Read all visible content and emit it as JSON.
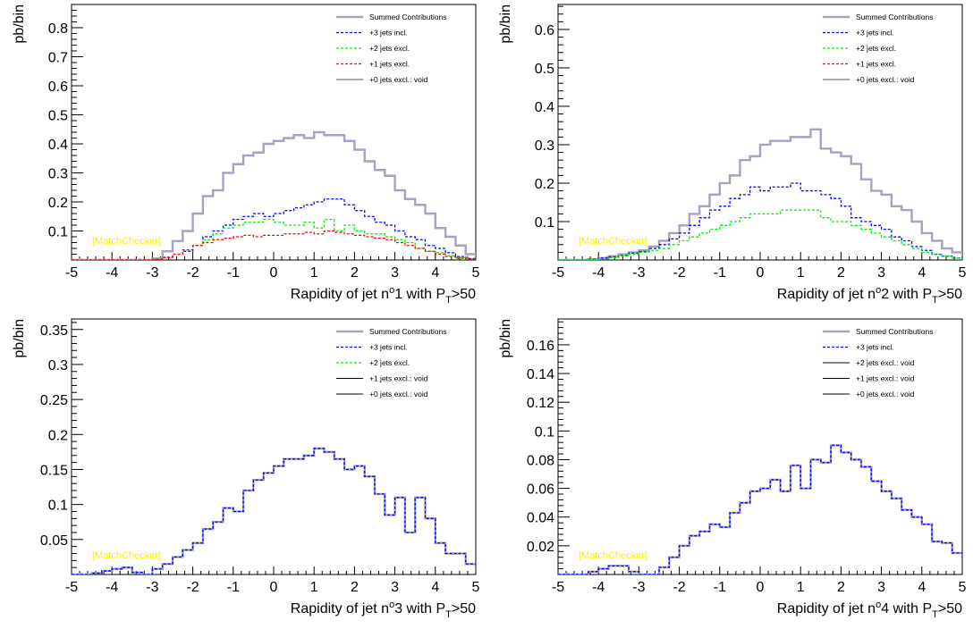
{
  "chart_data": [
    {
      "type": "line",
      "xlabel_parts": [
        "Rapidity of jet n",
        "o",
        "1 with P",
        "T",
        ">50"
      ],
      "ylabel": "pb/bin",
      "xlim": [
        -5,
        5
      ],
      "ylim": [
        0,
        0.88
      ],
      "xticks": [
        "-5",
        "-4",
        "-3",
        "-2",
        "-1",
        "0",
        "1",
        "2",
        "3",
        "4",
        "5"
      ],
      "yticks": [
        {
          "v": 0.1,
          "label": "0.1"
        },
        {
          "v": 0.2,
          "label": "0.2"
        },
        {
          "v": 0.3,
          "label": "0.3"
        },
        {
          "v": 0.4,
          "label": "0.4"
        },
        {
          "v": 0.5,
          "label": "0.5"
        },
        {
          "v": 0.6,
          "label": "0.6"
        },
        {
          "v": 0.7,
          "label": "0.7"
        },
        {
          "v": 0.8,
          "label": "0.8"
        }
      ],
      "watermark": "[MatchChecker]",
      "legend_position": "top-right",
      "legend": [
        {
          "label": "Summed Contributions",
          "color": "#a3a3c2",
          "style": "solid-thick"
        },
        {
          "label": "+3 jets incl.",
          "color": "#0000ff",
          "style": "dashed"
        },
        {
          "label": "+2 jets excl.",
          "color": "#00ee00",
          "style": "dashed"
        },
        {
          "label": "+1 jets excl.",
          "color": "#ff0000",
          "style": "dashed"
        },
        {
          "label": "+0 jets  excl.: void",
          "color": "#555555",
          "style": "solid"
        }
      ],
      "bin_start": -5,
      "bin_width": 0.25,
      "series": [
        {
          "name": "Summed Contributions",
          "color": "#a3a3c2",
          "width": 2.4,
          "dash": "",
          "values": [
            0,
            0,
            0,
            0,
            0,
            0,
            0,
            0,
            0.005,
            0.03,
            0.065,
            0.1,
            0.16,
            0.22,
            0.24,
            0.3,
            0.33,
            0.36,
            0.37,
            0.4,
            0.41,
            0.42,
            0.43,
            0.42,
            0.44,
            0.43,
            0.43,
            0.41,
            0.38,
            0.34,
            0.31,
            0.29,
            0.24,
            0.21,
            0.19,
            0.16,
            0.11,
            0.08,
            0.05,
            0.02,
            0.01,
            0.003,
            0,
            0,
            0,
            0,
            0,
            0,
            0,
            0
          ]
        },
        {
          "name": "+3 jets incl.",
          "color": "#0000ff",
          "width": 1.3,
          "dash": "3,2",
          "values": [
            0,
            0,
            0,
            0,
            0,
            0,
            0,
            0,
            0.003,
            0.01,
            0.02,
            0.03,
            0.05,
            0.08,
            0.1,
            0.12,
            0.14,
            0.15,
            0.16,
            0.15,
            0.16,
            0.17,
            0.18,
            0.19,
            0.2,
            0.21,
            0.21,
            0.19,
            0.17,
            0.15,
            0.13,
            0.12,
            0.1,
            0.08,
            0.07,
            0.05,
            0.04,
            0.025,
            0.012,
            0.005,
            0.002,
            0,
            0,
            0,
            0,
            0,
            0,
            0,
            0,
            0
          ]
        },
        {
          "name": "+2 jets excl.",
          "color": "#00ee00",
          "width": 1.3,
          "dash": "3,2",
          "values": [
            0,
            0,
            0,
            0,
            0,
            0,
            0,
            0,
            0.003,
            0.01,
            0.02,
            0.035,
            0.05,
            0.07,
            0.09,
            0.11,
            0.12,
            0.13,
            0.13,
            0.14,
            0.13,
            0.12,
            0.12,
            0.13,
            0.11,
            0.14,
            0.1,
            0.12,
            0.1,
            0.09,
            0.09,
            0.08,
            0.07,
            0.06,
            0.04,
            0.03,
            0.025,
            0.015,
            0.008,
            0.003,
            0,
            0,
            0,
            0,
            0,
            0,
            0,
            0,
            0,
            0
          ]
        },
        {
          "name": "+1 jets excl.",
          "color": "#ff0000",
          "width": 1.3,
          "dash": "3,2",
          "values": [
            0,
            0,
            0,
            0,
            0,
            0,
            0,
            0,
            0.002,
            0.008,
            0.02,
            0.035,
            0.05,
            0.06,
            0.07,
            0.075,
            0.08,
            0.085,
            0.08,
            0.085,
            0.085,
            0.09,
            0.09,
            0.095,
            0.09,
            0.1,
            0.095,
            0.09,
            0.085,
            0.08,
            0.075,
            0.07,
            0.06,
            0.05,
            0.04,
            0.03,
            0.02,
            0.012,
            0.006,
            0.002,
            0,
            0,
            0,
            0,
            0,
            0,
            0,
            0,
            0,
            0
          ]
        }
      ]
    },
    {
      "type": "line",
      "xlabel_parts": [
        "Rapidity of jet n",
        "o",
        "2 with P",
        "T",
        ">50"
      ],
      "ylabel": "pb/bin",
      "xlim": [
        -5,
        5
      ],
      "ylim": [
        0,
        0.665
      ],
      "xticks": [
        "-5",
        "-4",
        "-3",
        "-2",
        "-1",
        "0",
        "1",
        "2",
        "3",
        "4",
        "5"
      ],
      "yticks": [
        {
          "v": 0.1,
          "label": "0.1"
        },
        {
          "v": 0.2,
          "label": "0.2"
        },
        {
          "v": 0.3,
          "label": "0.3"
        },
        {
          "v": 0.4,
          "label": "0.4"
        },
        {
          "v": 0.5,
          "label": "0.5"
        },
        {
          "v": 0.6,
          "label": "0.6"
        }
      ],
      "watermark": "[MatchChecker]",
      "legend_position": "top-right",
      "legend": [
        {
          "label": "Summed Contributions",
          "color": "#a3a3c2",
          "style": "solid-thick"
        },
        {
          "label": "+3 jets incl.",
          "color": "#0000ff",
          "style": "dashed"
        },
        {
          "label": "+2 jets excl.",
          "color": "#00ee00",
          "style": "dashed"
        },
        {
          "label": "+1 jets excl.",
          "color": "#ff0000",
          "style": "dashed"
        },
        {
          "label": "+0 jets  excl.: void",
          "color": "#555555",
          "style": "solid"
        }
      ],
      "bin_start": -5,
      "bin_width": 0.25,
      "series": [
        {
          "name": "Summed Contributions",
          "color": "#a3a3c2",
          "width": 2.4,
          "dash": "",
          "values": [
            0,
            0,
            0,
            0.002,
            0.005,
            0.01,
            0.015,
            0.02,
            0.025,
            0.035,
            0.05,
            0.07,
            0.09,
            0.12,
            0.14,
            0.17,
            0.2,
            0.22,
            0.26,
            0.27,
            0.3,
            0.31,
            0.31,
            0.32,
            0.32,
            0.34,
            0.29,
            0.28,
            0.27,
            0.25,
            0.21,
            0.18,
            0.17,
            0.14,
            0.13,
            0.1,
            0.07,
            0.05,
            0.03,
            0.02,
            0.012,
            0.005,
            0.002,
            0,
            0,
            0,
            0,
            0,
            0,
            0
          ]
        },
        {
          "name": "+3 jets incl.",
          "color": "#0000ff",
          "width": 1.3,
          "dash": "3,2",
          "values": [
            0,
            0,
            0,
            0.002,
            0.005,
            0.008,
            0.012,
            0.018,
            0.022,
            0.03,
            0.04,
            0.055,
            0.07,
            0.09,
            0.11,
            0.13,
            0.14,
            0.16,
            0.17,
            0.19,
            0.18,
            0.19,
            0.19,
            0.2,
            0.18,
            0.18,
            0.17,
            0.16,
            0.14,
            0.11,
            0.1,
            0.09,
            0.08,
            0.06,
            0.05,
            0.035,
            0.025,
            0.015,
            0.01,
            0.005,
            0.002,
            0,
            0,
            0,
            0,
            0,
            0,
            0,
            0,
            0
          ]
        },
        {
          "name": "+2 jets excl.",
          "color": "#00ee00",
          "width": 1.3,
          "dash": "3,2",
          "values": [
            0,
            0,
            0,
            0.001,
            0.003,
            0.006,
            0.01,
            0.015,
            0.02,
            0.025,
            0.03,
            0.04,
            0.05,
            0.06,
            0.07,
            0.08,
            0.09,
            0.1,
            0.11,
            0.12,
            0.12,
            0.12,
            0.13,
            0.13,
            0.13,
            0.13,
            0.11,
            0.1,
            0.1,
            0.09,
            0.08,
            0.07,
            0.06,
            0.05,
            0.04,
            0.03,
            0.02,
            0.015,
            0.01,
            0.005,
            0.002,
            0,
            0,
            0,
            0,
            0,
            0,
            0,
            0,
            0
          ]
        }
      ]
    },
    {
      "type": "line",
      "xlabel_parts": [
        "Rapidity of jet n",
        "o",
        "3 with P",
        "T",
        ">50"
      ],
      "ylabel": "pb/bin",
      "xlim": [
        -5,
        5
      ],
      "ylim": [
        0,
        0.365
      ],
      "xticks": [
        "-5",
        "-4",
        "-3",
        "-2",
        "-1",
        "0",
        "1",
        "2",
        "3",
        "4",
        "5"
      ],
      "yticks": [
        {
          "v": 0.05,
          "label": "0.05"
        },
        {
          "v": 0.1,
          "label": "0.1"
        },
        {
          "v": 0.15,
          "label": "0.15"
        },
        {
          "v": 0.2,
          "label": "0.2"
        },
        {
          "v": 0.25,
          "label": "0.25"
        },
        {
          "v": 0.3,
          "label": "0.3"
        },
        {
          "v": 0.35,
          "label": "0.35"
        }
      ],
      "watermark": "[MatchChecker]",
      "legend_position": "top-right",
      "legend": [
        {
          "label": "Summed Contributions",
          "color": "#a3a3c2",
          "style": "solid-thick"
        },
        {
          "label": "+3 jets incl.",
          "color": "#0000ff",
          "style": "dashed"
        },
        {
          "label": "+2 jets excl.",
          "color": "#00ee00",
          "style": "dashed"
        },
        {
          "label": "+1 jets excl.: void",
          "color": "#000000",
          "style": "solid"
        },
        {
          "label": "+0 jets  excl.: void",
          "color": "#000000",
          "style": "solid"
        }
      ],
      "bin_start": -5,
      "bin_width": 0.25,
      "series": [
        {
          "name": "Summed Contributions",
          "color": "#a3a3c2",
          "width": 2.4,
          "dash": "",
          "values": [
            0,
            0,
            0.002,
            0.005,
            0.008,
            0.01,
            0.003,
            0,
            0.008,
            0.015,
            0.025,
            0.035,
            0.045,
            0.065,
            0.075,
            0.095,
            0.09,
            0.12,
            0.135,
            0.145,
            0.155,
            0.165,
            0.165,
            0.17,
            0.18,
            0.175,
            0.165,
            0.15,
            0.155,
            0.14,
            0.115,
            0.085,
            0.11,
            0.06,
            0.11,
            0.08,
            0.045,
            0.03,
            0.03,
            0.015,
            0.012,
            0.008,
            0.005,
            0.003,
            0.002,
            0,
            0,
            0,
            0,
            0
          ]
        },
        {
          "name": "+3 jets incl.",
          "color": "#0000ff",
          "width": 1.3,
          "dash": "3,2",
          "values": [
            0,
            0,
            0.002,
            0.005,
            0.008,
            0.01,
            0.003,
            0,
            0.008,
            0.015,
            0.025,
            0.035,
            0.045,
            0.065,
            0.075,
            0.095,
            0.09,
            0.12,
            0.135,
            0.145,
            0.155,
            0.165,
            0.165,
            0.17,
            0.18,
            0.175,
            0.165,
            0.15,
            0.155,
            0.14,
            0.115,
            0.085,
            0.11,
            0.06,
            0.11,
            0.08,
            0.045,
            0.03,
            0.03,
            0.015,
            0.012,
            0.008,
            0.005,
            0.003,
            0.002,
            0,
            0,
            0,
            0,
            0
          ]
        }
      ]
    },
    {
      "type": "line",
      "xlabel_parts": [
        "Rapidity of jet n",
        "o",
        "4 with P",
        "T",
        ">50"
      ],
      "ylabel": "pb/bin",
      "xlim": [
        -5,
        5
      ],
      "ylim": [
        0,
        0.178
      ],
      "xticks": [
        "-5",
        "-4",
        "-3",
        "-2",
        "-1",
        "0",
        "1",
        "2",
        "3",
        "4",
        "5"
      ],
      "yticks": [
        {
          "v": 0.02,
          "label": "0.02"
        },
        {
          "v": 0.04,
          "label": "0.04"
        },
        {
          "v": 0.06,
          "label": "0.06"
        },
        {
          "v": 0.08,
          "label": "0.08"
        },
        {
          "v": 0.1,
          "label": "0.1"
        },
        {
          "v": 0.12,
          "label": "0.12"
        },
        {
          "v": 0.14,
          "label": "0.14"
        },
        {
          "v": 0.16,
          "label": "0.16"
        }
      ],
      "watermark": "[MatchChecker]",
      "legend_position": "top-right",
      "legend": [
        {
          "label": "Summed Contributions",
          "color": "#a3a3c2",
          "style": "solid-thick"
        },
        {
          "label": "+3 jets incl.",
          "color": "#0000ff",
          "style": "dashed"
        },
        {
          "label": "+2 jets excl.: void",
          "color": "#000000",
          "style": "solid"
        },
        {
          "label": "+1 jets excl.: void",
          "color": "#000000",
          "style": "solid"
        },
        {
          "label": "+0 jets  excl.: void",
          "color": "#000000",
          "style": "solid"
        }
      ],
      "bin_start": -5,
      "bin_width": 0.25,
      "series": [
        {
          "name": "Summed Contributions",
          "color": "#a3a3c2",
          "width": 2.4,
          "dash": "",
          "values": [
            0,
            0,
            0,
            0.002,
            0.004,
            0.006,
            0.006,
            0.002,
            0,
            0,
            0.005,
            0.012,
            0.02,
            0.027,
            0.03,
            0.035,
            0.033,
            0.043,
            0.05,
            0.058,
            0.06,
            0.066,
            0.058,
            0.076,
            0.06,
            0.08,
            0.078,
            0.09,
            0.085,
            0.08,
            0.075,
            0.065,
            0.058,
            0.053,
            0.045,
            0.04,
            0.035,
            0.023,
            0.022,
            0.015,
            0.012,
            0.01,
            0.008,
            0.003,
            0.005,
            0.002,
            0,
            0,
            0,
            0
          ]
        },
        {
          "name": "+3 jets incl.",
          "color": "#0000ff",
          "width": 1.3,
          "dash": "3,2",
          "values": [
            0,
            0,
            0,
            0.002,
            0.004,
            0.006,
            0.006,
            0.002,
            0,
            0,
            0.005,
            0.012,
            0.02,
            0.027,
            0.03,
            0.035,
            0.033,
            0.043,
            0.05,
            0.058,
            0.06,
            0.066,
            0.058,
            0.076,
            0.06,
            0.08,
            0.078,
            0.09,
            0.085,
            0.08,
            0.075,
            0.065,
            0.058,
            0.053,
            0.045,
            0.04,
            0.035,
            0.023,
            0.022,
            0.015,
            0.012,
            0.01,
            0.008,
            0.003,
            0.005,
            0.002,
            0,
            0,
            0,
            0
          ]
        }
      ]
    }
  ]
}
